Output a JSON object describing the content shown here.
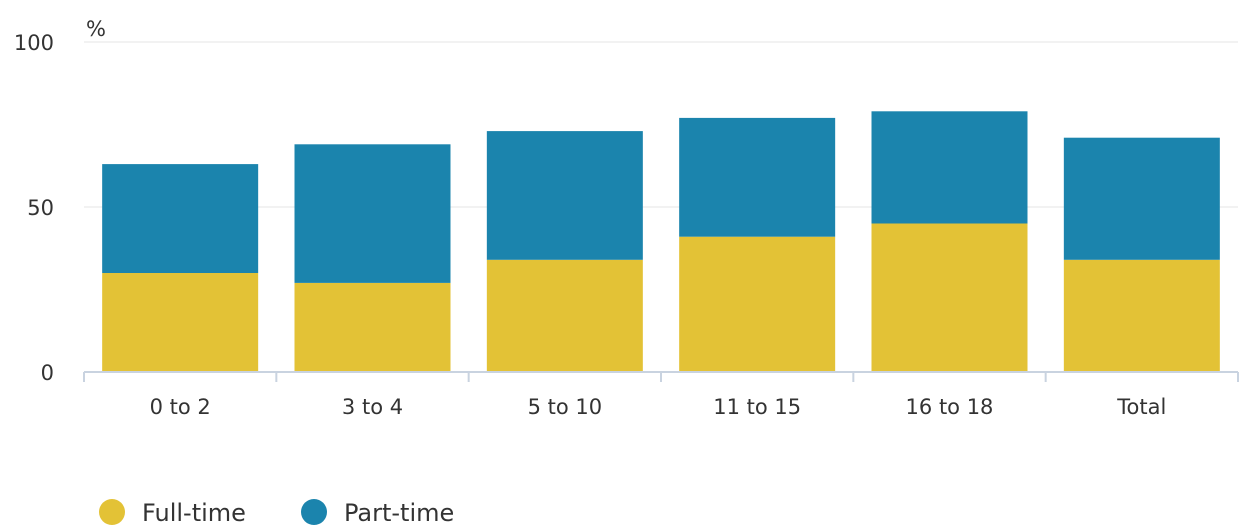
{
  "chart_data": {
    "type": "bar",
    "stacked": true,
    "categories": [
      "0 to 2",
      "3 to 4",
      "5 to 10",
      "11 to 15",
      "16 to 18",
      "Total"
    ],
    "series": [
      {
        "name": "Full-time",
        "values": [
          30,
          27,
          34,
          41,
          45,
          34
        ],
        "color": "#e3c236"
      },
      {
        "name": "Part-time",
        "values": [
          33,
          42,
          39,
          36,
          34,
          37
        ],
        "color": "#1b84ad"
      }
    ],
    "y_unit": "%",
    "ylim": [
      0,
      100
    ],
    "yticks": [
      "0",
      "50",
      "100"
    ],
    "grid": true,
    "legend_position": "bottom-left",
    "title": "",
    "xlabel": "",
    "ylabel": ""
  }
}
